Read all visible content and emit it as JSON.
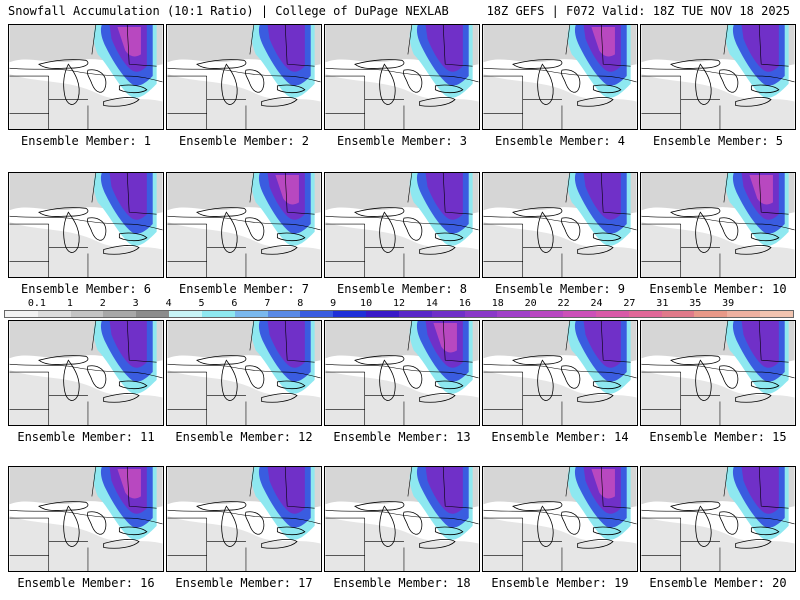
{
  "header": {
    "title_left": "Snowfall Accumulation (10:1 Ratio) | College of DuPage NEXLAB",
    "title_right": "18Z GEFS | F072 Valid: 18Z TUE NOV 18 2025"
  },
  "panels": [
    {
      "label": "Ensemble Member: 1"
    },
    {
      "label": "Ensemble Member: 2"
    },
    {
      "label": "Ensemble Member: 3"
    },
    {
      "label": "Ensemble Member: 4"
    },
    {
      "label": "Ensemble Member: 5"
    },
    {
      "label": "Ensemble Member: 6"
    },
    {
      "label": "Ensemble Member: 7"
    },
    {
      "label": "Ensemble Member: 8"
    },
    {
      "label": "Ensemble Member: 9"
    },
    {
      "label": "Ensemble Member: 10"
    },
    {
      "label": "Ensemble Member: 11"
    },
    {
      "label": "Ensemble Member: 12"
    },
    {
      "label": "Ensemble Member: 13"
    },
    {
      "label": "Ensemble Member: 14"
    },
    {
      "label": "Ensemble Member: 15"
    },
    {
      "label": "Ensemble Member: 16"
    },
    {
      "label": "Ensemble Member: 17"
    },
    {
      "label": "Ensemble Member: 18"
    },
    {
      "label": "Ensemble Member: 19"
    },
    {
      "label": "Ensemble Member: 20"
    }
  ],
  "colorbar": {
    "labels": [
      "0.1",
      "1",
      "2",
      "3",
      "4",
      "5",
      "6",
      "7",
      "8",
      "9",
      "10",
      "12",
      "14",
      "16",
      "18",
      "20",
      "22",
      "24",
      "27",
      "31",
      "35",
      "39"
    ],
    "colors": [
      "#f2f2f2",
      "#dcdcdc",
      "#c4c4c4",
      "#a8a8a8",
      "#8c8c8c",
      "#c8f4f6",
      "#8ee8f0",
      "#7ab8ee",
      "#5a8ae6",
      "#3a5ce0",
      "#2030d8",
      "#3a1ac8",
      "#5a28c8",
      "#7030c8",
      "#8a38c8",
      "#a040c8",
      "#b848c0",
      "#cc50b8",
      "#d85aa8",
      "#e06898",
      "#e07a8a",
      "#e89888",
      "#eeb0a0",
      "#f2c4b0"
    ]
  }
}
